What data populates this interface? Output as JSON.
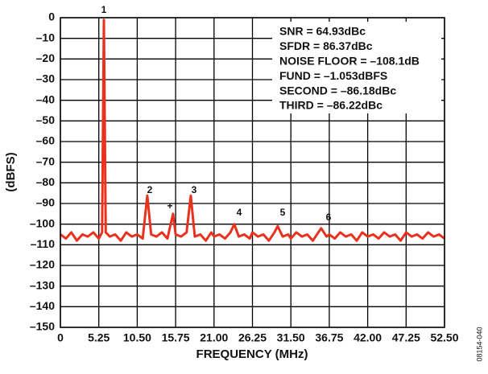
{
  "chart_data": {
    "type": "line",
    "xlabel": "FREQUENCY (MHz)",
    "ylabel": "(dBFS)",
    "figure_id": "08154-040",
    "stats": [
      "SNR = 64.93dBc",
      "SFDR = 86.37dBc",
      "NOISE FLOOR = –108.1dB",
      "FUND = –1.053dBFS",
      "SECOND = –86.18dBc",
      "THIRD = –86.22dBc"
    ],
    "annotations": [
      "1",
      "2",
      "+",
      "3",
      "4",
      "5",
      "6"
    ],
    "grid": true,
    "xlim": [
      0,
      52.5
    ],
    "ylim": [
      -150,
      0
    ],
    "xticks": [
      0,
      5.25,
      {
        "value": 10.5,
        "label": "10.50"
      },
      15.75,
      {
        "value": 21,
        "label": "21.00"
      },
      26.25,
      {
        "value": 31.5,
        "label": "31.50"
      },
      36.75,
      {
        "value": 42,
        "label": "42.00"
      },
      47.25,
      {
        "value": 52.5,
        "label": "52.50"
      }
    ],
    "yticks": [
      0,
      {
        "value": -10,
        "label": "–10"
      },
      {
        "value": -20,
        "label": "–20"
      },
      {
        "value": -30,
        "label": "–30"
      },
      {
        "value": -40,
        "label": "–40"
      },
      {
        "value": -50,
        "label": "–50"
      },
      {
        "value": -60,
        "label": "–60"
      },
      {
        "value": -70,
        "label": "–70"
      },
      {
        "value": -80,
        "label": "–80"
      },
      {
        "value": -90,
        "label": "–90"
      },
      {
        "value": -100,
        "label": "–100"
      },
      {
        "value": -110,
        "label": "–110"
      },
      {
        "value": -120,
        "label": "–120"
      },
      {
        "value": -130,
        "label": "–130"
      },
      {
        "value": -140,
        "label": "–140"
      },
      {
        "value": -150,
        "label": "–150"
      }
    ],
    "x": [
      0,
      0.75,
      1.5,
      2.25,
      3,
      3.75,
      4.5,
      5.25,
      5.7,
      5.94,
      6.2,
      6.75,
      7.5,
      8.25,
      9,
      9.75,
      10.5,
      11.25,
      11.88,
      12.4,
      13.125,
      13.875,
      14.625,
      15.4,
      15.75,
      16.5,
      17.25,
      17.82,
      18.375,
      19.125,
      19.875,
      20.625,
      21,
      21.75,
      22.5,
      23.25,
      23.76,
      24.375,
      25.125,
      25.875,
      26.25,
      27,
      27.75,
      28.5,
      29.25,
      29.7,
      30.375,
      31.125,
      31.5,
      32.25,
      33,
      33.75,
      34.5,
      35.25,
      35.64,
      36.375,
      36.75,
      37.5,
      38.25,
      39,
      39.75,
      40.5,
      41.25,
      42,
      42.75,
      43.5,
      44.25,
      45,
      45.75,
      46.5,
      47.25,
      48,
      48.75,
      49.5,
      50.25,
      51,
      51.75,
      52.5
    ],
    "series": [
      {
        "color": "#e8321e",
        "values": [
          -105,
          -107,
          -104,
          -108,
          -105,
          -106,
          -104,
          -107,
          -104,
          -1.053,
          -104,
          -106,
          -105,
          -108,
          -104,
          -106,
          -105,
          -107,
          -86.18,
          -105,
          -106,
          -104,
          -107,
          -95,
          -105,
          -106,
          -104,
          -86.22,
          -106,
          -105,
          -108,
          -104,
          -106,
          -105,
          -107,
          -104,
          -100,
          -106,
          -105,
          -107,
          -104,
          -106,
          -105,
          -108,
          -104,
          -101,
          -106,
          -105,
          -107,
          -104,
          -106,
          -105,
          -108,
          -104,
          -102,
          -106,
          -105,
          -107,
          -104,
          -106,
          -105,
          -108,
          -104,
          -106,
          -105,
          -107,
          -104,
          -106,
          -105,
          -108,
          -104,
          -106,
          -105,
          -107,
          -104,
          -106,
          -105,
          -107
        ]
      }
    ]
  }
}
